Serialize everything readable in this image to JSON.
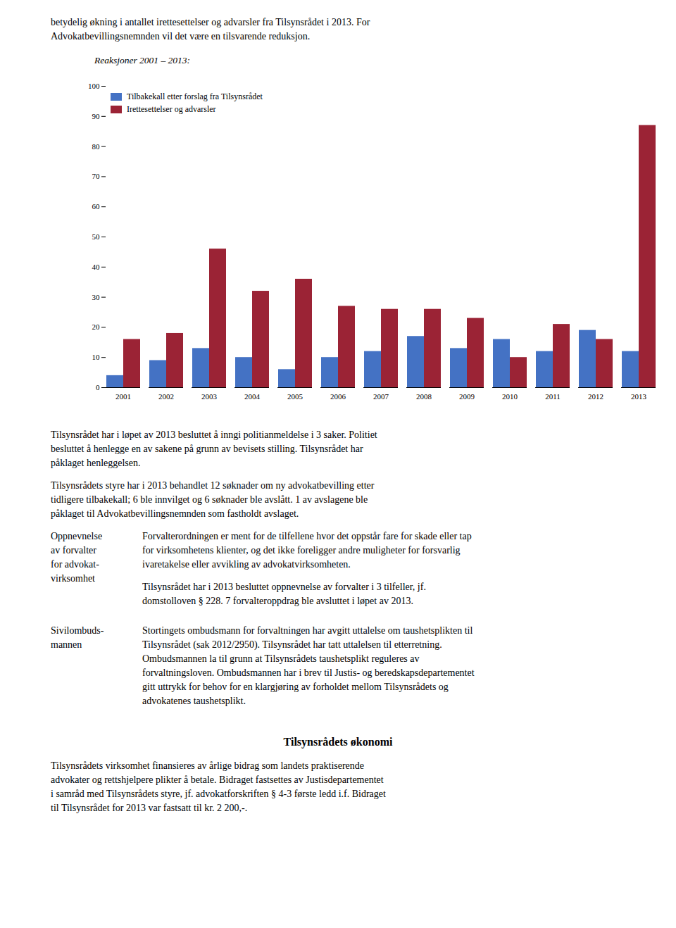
{
  "text_before": [
    "betydelig økning i antallet irettesettelser og advarsler fra Tilsynsrådet i 2013. For",
    "Advokatbevillingsnemnden vil det være en tilsvarende reduksjon."
  ],
  "chart_data": {
    "type": "bar",
    "title": "Reaksjoner 2001 – 2013:",
    "categories": [
      "2001",
      "2002",
      "2003",
      "2004",
      "2005",
      "2006",
      "2007",
      "2008",
      "2009",
      "2010",
      "2011",
      "2012",
      "2013"
    ],
    "series": [
      {
        "name": "Tilbakekall etter forslag fra Tilsynsrådet",
        "color": "#4472C4",
        "values": [
          4,
          9,
          13,
          10,
          6,
          10,
          12,
          17,
          13,
          16,
          12,
          19,
          12
        ]
      },
      {
        "name": "Irettesettelser og advarsler",
        "color": "#9B2335",
        "values": [
          16,
          18,
          46,
          32,
          36,
          27,
          26,
          26,
          23,
          10,
          21,
          16,
          87
        ]
      }
    ],
    "ylim": [
      0,
      100
    ],
    "yticks": [
      0,
      10,
      20,
      30,
      40,
      50,
      60,
      70,
      80,
      90,
      100
    ],
    "grid": false,
    "legend": "upper left"
  },
  "text_after": [
    {
      "lines": [
        "Tilsynsrådet har i løpet av 2013 besluttet å inngi politianmeldelse i 3 saker. Politiet",
        "besluttet å henlegge en av sakene på grunn av bevisets stilling. Tilsynsrådet har",
        "påklaget henleggelsen."
      ]
    },
    {
      "lines": [
        "Tilsynsrådets styre har i 2013 behandlet 12 søknader om ny advokatbevilling etter",
        "tidligere tilbakekall; 6 ble innvilget og 6 søknader ble avslått. 1 av avslagene ble",
        "påklaget til Advokatbevillingsnemnden som fastholdt avslaget."
      ]
    },
    {
      "side_label": [
        "Oppnevnelse",
        "av forvalter",
        "for advokat-",
        "virksomhet"
      ],
      "paragraphs": [
        [
          "Forvalterordningen er ment for de tilfellene hvor det oppstår fare for skade eller tap",
          "for virksomhetens klienter, og det ikke foreligger andre muligheter for forsvarlig",
          "ivaretakelse eller avvikling av advokatvirksomheten."
        ],
        [
          "Tilsynsrådet har i 2013 besluttet oppnevnelse av forvalter i 3 tilfeller, jf.",
          "domstolloven § 228. 7 forvalteroppdrag ble avsluttet i løpet av 2013."
        ]
      ]
    },
    {
      "side_label": [
        "Sivilombuds-",
        "mannen"
      ],
      "paragraphs": [
        [
          "Stortingets ombudsmann for forvaltningen har avgitt uttalelse om taushetsplikten til",
          "Tilsynsrådet (sak 2012/2950). Tilsynsrådet har tatt uttalelsen til etterretning.",
          "Ombudsmannen la til grunn at Tilsynsrådets taushetsplikt reguleres av",
          "forvaltningsloven. Ombudsmannen har i brev til Justis- og beredskapsdepartementet",
          "gitt uttrykk for behov for en klargjøring av forholdet mellom Tilsynsrådets og",
          "advokatenes taushetsplikt."
        ]
      ]
    },
    {
      "heading": "Tilsynsrådets økonomi"
    },
    {
      "lines": [
        "Tilsynsrådets virksomhet finansieres av årlige bidrag som landets praktiserende",
        "advokater og rettshjelpere plikter å betale. Bidraget fastsettes av Justisdepartementet",
        "i samråd med Tilsynsrådets styre, jf. advokatforskriften § 4-3 første ledd i.f. Bidraget",
        "til Tilsynsrådet for 2013 var fastsatt til kr. 2 200,-."
      ]
    }
  ]
}
